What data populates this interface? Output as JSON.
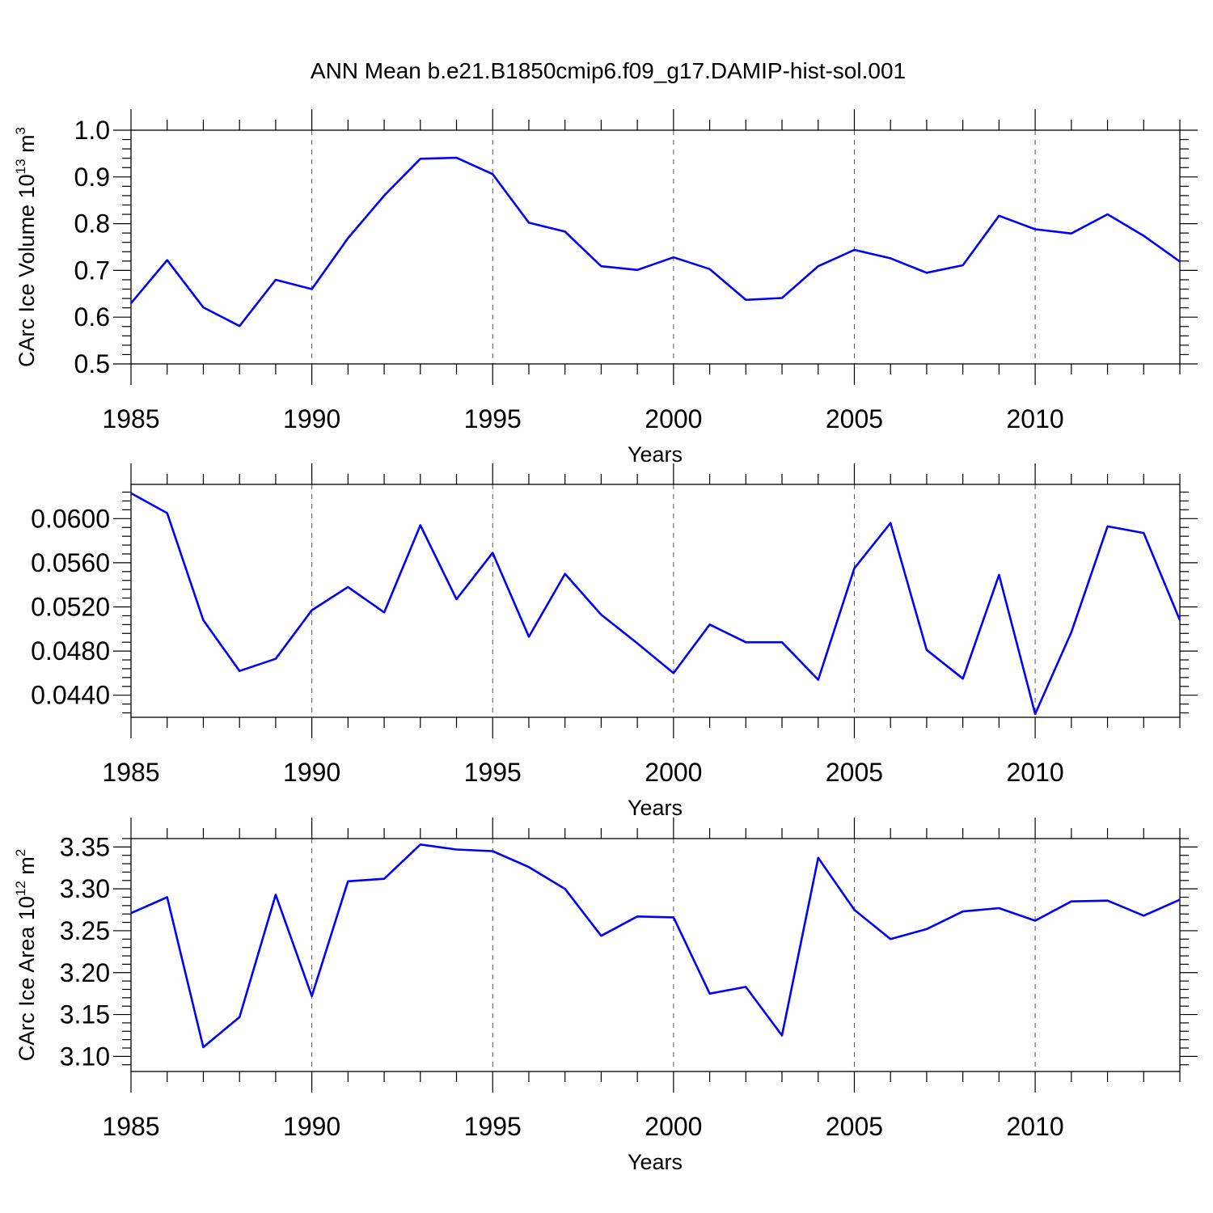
{
  "title": "ANN Mean b.e21.B1850cmip6.f09_g17.DAMIP-hist-sol.001",
  "series_color": "#0000ff",
  "chart_data": [
    {
      "type": "line",
      "ylabel": "CArc Ice Volume 10",
      "ylabel_sup": "13",
      "ylabel_unit": " m",
      "ylabel_unit_sup": "3",
      "xlabel": "Years",
      "xlim": [
        1985,
        2014
      ],
      "ylim": [
        0.5,
        1.0
      ],
      "yticks": [
        0.5,
        0.6,
        0.7,
        0.8,
        0.9,
        1.0
      ],
      "ytick_labels": [
        "0.5",
        "0.6",
        "0.7",
        "0.8",
        "0.9",
        "1.0"
      ],
      "xticks": [
        1985,
        1990,
        1995,
        2000,
        2005,
        2010
      ],
      "xtick_labels": [
        "1985",
        "1990",
        "1995",
        "2000",
        "2005",
        "2010"
      ],
      "x": [
        1985,
        1986,
        1987,
        1988,
        1989,
        1990,
        1991,
        1992,
        1993,
        1994,
        1995,
        1996,
        1997,
        1998,
        1999,
        2000,
        2001,
        2002,
        2003,
        2004,
        2005,
        2006,
        2007,
        2008,
        2009,
        2010,
        2011,
        2012,
        2013,
        2014
      ],
      "y": [
        0.63,
        0.722,
        0.621,
        0.581,
        0.68,
        0.66,
        0.769,
        0.86,
        0.939,
        0.941,
        0.906,
        0.802,
        0.783,
        0.709,
        0.701,
        0.728,
        0.703,
        0.637,
        0.641,
        0.709,
        0.744,
        0.726,
        0.695,
        0.711,
        0.817,
        0.788,
        0.779,
        0.82,
        0.774,
        0.719
      ]
    },
    {
      "type": "line",
      "ylabel": "",
      "xlabel": "Years",
      "xlim": [
        1985,
        2014
      ],
      "ylim": [
        0.042,
        0.0631
      ],
      "yticks": [
        0.044,
        0.048,
        0.052,
        0.056,
        0.06
      ],
      "ytick_labels": [
        "0.0440",
        "0.0480",
        "0.0520",
        "0.0560",
        "0.0600"
      ],
      "xticks": [
        1985,
        1990,
        1995,
        2000,
        2005,
        2010
      ],
      "xtick_labels": [
        "1985",
        "1990",
        "1995",
        "2000",
        "2005",
        "2010"
      ],
      "x": [
        1985,
        1986,
        1987,
        1988,
        1989,
        1990,
        1991,
        1992,
        1993,
        1994,
        1995,
        1996,
        1997,
        1998,
        1999,
        2000,
        2001,
        2002,
        2003,
        2004,
        2005,
        2006,
        2007,
        2008,
        2009,
        2010,
        2011,
        2012,
        2013,
        2014
      ],
      "y": [
        0.0623,
        0.0605,
        0.0508,
        0.0462,
        0.0473,
        0.0517,
        0.0538,
        0.0515,
        0.0594,
        0.0527,
        0.0569,
        0.0493,
        0.055,
        0.0513,
        0.0487,
        0.046,
        0.0504,
        0.0488,
        0.0488,
        0.0454,
        0.0555,
        0.0596,
        0.0481,
        0.0455,
        0.0549,
        0.0423,
        0.0497,
        0.0593,
        0.0587,
        0.0508
      ]
    },
    {
      "type": "line",
      "ylabel": "CArc Ice Area 10",
      "ylabel_sup": "12",
      "ylabel_unit": " m",
      "ylabel_unit_sup": "2",
      "xlabel": "Years",
      "xlim": [
        1985,
        2014
      ],
      "ylim": [
        3.082,
        3.36
      ],
      "yticks": [
        3.1,
        3.15,
        3.2,
        3.25,
        3.3,
        3.35
      ],
      "ytick_labels": [
        "3.10",
        "3.15",
        "3.20",
        "3.25",
        "3.30",
        "3.35"
      ],
      "xticks": [
        1985,
        1990,
        1995,
        2000,
        2005,
        2010
      ],
      "xtick_labels": [
        "1985",
        "1990",
        "1995",
        "2000",
        "2005",
        "2010"
      ],
      "x": [
        1985,
        1986,
        1987,
        1988,
        1989,
        1990,
        1991,
        1992,
        1993,
        1994,
        1995,
        1996,
        1997,
        1998,
        1999,
        2000,
        2001,
        2002,
        2003,
        2004,
        2005,
        2006,
        2007,
        2008,
        2009,
        2010,
        2011,
        2012,
        2013,
        2014
      ],
      "y": [
        3.271,
        3.29,
        3.111,
        3.147,
        3.293,
        3.172,
        3.309,
        3.312,
        3.353,
        3.347,
        3.345,
        3.326,
        3.3,
        3.244,
        3.267,
        3.266,
        3.175,
        3.183,
        3.125,
        3.337,
        3.275,
        3.24,
        3.252,
        3.273,
        3.277,
        3.262,
        3.285,
        3.286,
        3.268,
        3.287
      ]
    }
  ]
}
